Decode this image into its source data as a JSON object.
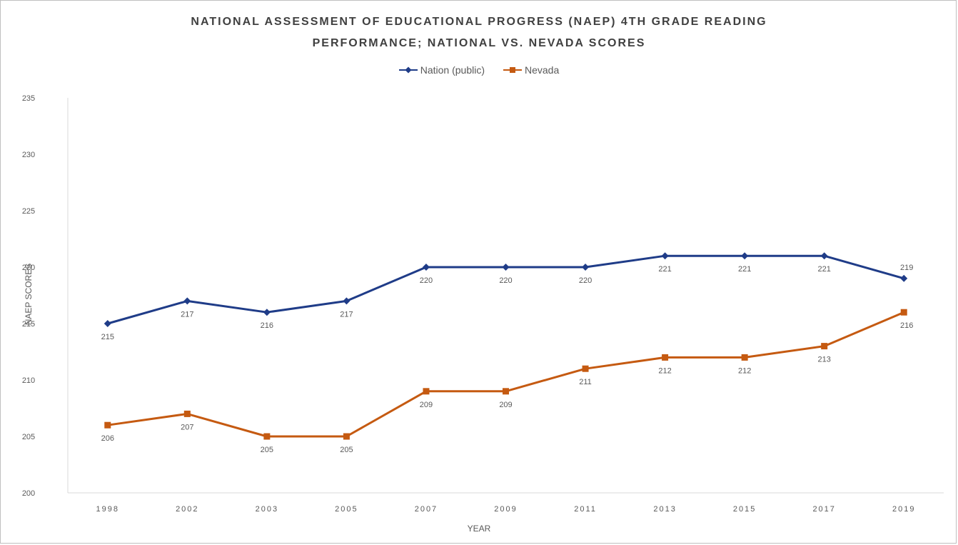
{
  "chart_data": {
    "type": "line",
    "title": "NATIONAL ASSESSMENT OF EDUCATIONAL PROGRESS (NAEP) 4TH GRADE READING PERFORMANCE; NATIONAL VS. NEVADA SCORES",
    "title_line1": "NATIONAL ASSESSMENT OF EDUCATIONAL PROGRESS (NAEP) 4TH GRADE READING",
    "title_line2": "PERFORMANCE; NATIONAL VS. NEVADA SCORES",
    "xlabel": "YEAR",
    "ylabel": "NAEP SCORES",
    "categories": [
      "1998",
      "2002",
      "2003",
      "2005",
      "2007",
      "2009",
      "2011",
      "2013",
      "2015",
      "2017",
      "2019"
    ],
    "ylim": [
      200,
      235
    ],
    "yticks": [
      "200",
      "205",
      "210",
      "215",
      "220",
      "225",
      "230",
      "235"
    ],
    "legend_position": "top",
    "grid": false,
    "series": [
      {
        "name": "Nation (public)",
        "color": "#1f3c88",
        "marker": "diamond",
        "values": [
          215,
          217,
          216,
          217,
          220,
          220,
          220,
          221,
          221,
          221,
          219
        ],
        "labels": [
          "215",
          "217",
          "216",
          "217",
          "220",
          "220",
          "220",
          "221",
          "221",
          "221",
          "219"
        ],
        "label_position": [
          "below",
          "below",
          "below",
          "below",
          "below",
          "below",
          "below",
          "below",
          "below",
          "below",
          "above"
        ]
      },
      {
        "name": "Nevada",
        "color": "#c55a11",
        "marker": "square",
        "values": [
          206,
          207,
          205,
          205,
          209,
          209,
          211,
          212,
          212,
          213,
          216
        ],
        "labels": [
          "206",
          "207",
          "205",
          "205",
          "209",
          "209",
          "211",
          "212",
          "212",
          "213",
          "216"
        ],
        "label_position": [
          "below",
          "below",
          "below",
          "below",
          "below",
          "below",
          "below",
          "below",
          "below",
          "below",
          "below"
        ]
      }
    ]
  },
  "legend": {
    "nation_label": "Nation (public)",
    "nevada_label": "Nevada"
  }
}
